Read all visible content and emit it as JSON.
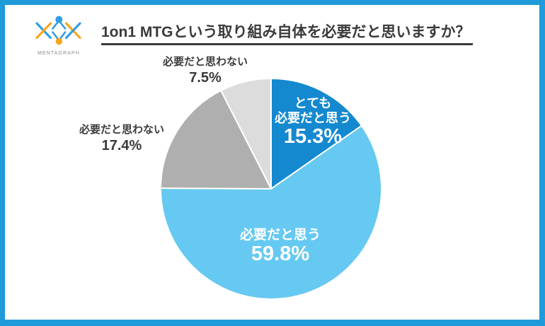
{
  "brand": {
    "name": "MENTAGRAPH"
  },
  "title": "1on1 MTGという取り組み自体を必要だと思いますか？",
  "colors": {
    "frame": "#1E9BD8",
    "title_text": "#3A3A3A",
    "outside_label": "#3A3A3A",
    "inside_label": "#FFFFFF",
    "logo_blue": "#2E9FE0",
    "logo_orange": "#F7A51C",
    "brand_text": "#8A8A8A"
  },
  "chart_data": {
    "type": "pie",
    "title": "1on1 MTGという取り組み自体を必要だと思いますか？",
    "start_angle_deg": 0,
    "direction": "clockwise",
    "separator_color": "#FFFFFF",
    "legend": "none",
    "slices": [
      {
        "label": "とても必要だと思う",
        "label_lines": [
          "とても",
          "必要だと思う"
        ],
        "value": 15.3,
        "pct_label": "15.3%",
        "color": "#1489D0",
        "label_placement": "inside"
      },
      {
        "label": "必要だと思う",
        "label_lines": [
          "必要だと思う"
        ],
        "value": 59.8,
        "pct_label": "59.8%",
        "color": "#66C9F1",
        "label_placement": "inside"
      },
      {
        "label": "必要だと思わない",
        "label_lines": [
          "必要だと思わない"
        ],
        "value": 17.4,
        "pct_label": "17.4%",
        "color": "#AFAFAF",
        "label_placement": "outside-left"
      },
      {
        "label": "必要だと思わない",
        "label_lines": [
          "必要だと思わない"
        ],
        "value": 7.5,
        "pct_label": "7.5%",
        "color": "#DCDCDC",
        "label_placement": "outside-top"
      }
    ]
  }
}
